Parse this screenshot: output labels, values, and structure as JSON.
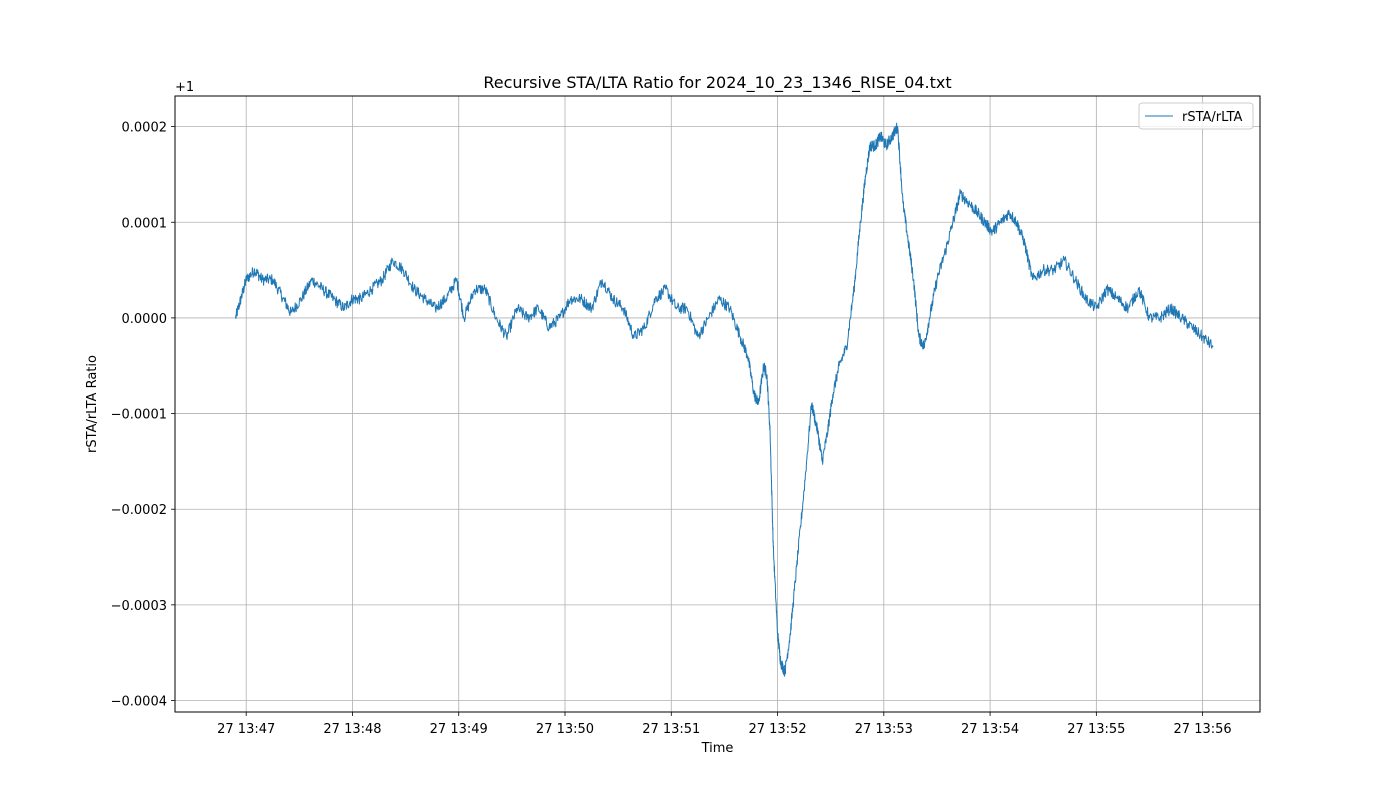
{
  "chart_data": {
    "type": "line",
    "title": "Recursive STA/LTA Ratio for 2024_10_23_1346_RISE_04.txt",
    "xlabel": "Time",
    "ylabel": "rSTA/rLTA Ratio",
    "y_offset_label": "+1",
    "y_offset": 1,
    "x_tick_labels": [
      "27 13:47",
      "27 13:48",
      "27 13:49",
      "27 13:50",
      "27 13:51",
      "27 13:52",
      "27 13:53",
      "27 13:54",
      "27 13:55",
      "27 13:56"
    ],
    "x_ticks_min": [
      47,
      48,
      49,
      50,
      51,
      52,
      53,
      54,
      55,
      56
    ],
    "xlim": [
      46.33,
      56.54
    ],
    "x_unit": "minutes past 13:00 on day 27",
    "y_tick_labels": [
      "0.0002",
      "0.0001",
      "0.0000",
      "−0.0001",
      "−0.0002",
      "−0.0003",
      "−0.0004"
    ],
    "y_ticks": [
      0.0002,
      0.0001,
      0.0,
      -0.0001,
      -0.0002,
      -0.0003,
      -0.0004
    ],
    "ylim": [
      -0.000412,
      0.000232
    ],
    "grid": true,
    "legend": {
      "position": "top-right",
      "entries": [
        "rSTA/rLTA"
      ]
    },
    "series": [
      {
        "name": "rSTA/rLTA",
        "color": "#1f77b4",
        "x": [
          46.9,
          46.95,
          47.0,
          47.08,
          47.15,
          47.25,
          47.35,
          47.42,
          47.52,
          47.62,
          47.72,
          47.82,
          47.92,
          48.0,
          48.08,
          48.18,
          48.28,
          48.38,
          48.48,
          48.58,
          48.68,
          48.78,
          48.88,
          48.98,
          49.05,
          49.15,
          49.25,
          49.35,
          49.45,
          49.55,
          49.65,
          49.75,
          49.85,
          49.95,
          50.05,
          50.15,
          50.25,
          50.35,
          50.45,
          50.55,
          50.65,
          50.75,
          50.85,
          50.95,
          51.05,
          51.15,
          51.25,
          51.35,
          51.45,
          51.55,
          51.65,
          51.72,
          51.78,
          51.82,
          51.87,
          51.9,
          51.93,
          51.96,
          52.0,
          52.03,
          52.07,
          52.12,
          52.18,
          52.25,
          52.32,
          52.38,
          52.42,
          52.47,
          52.52,
          52.58,
          52.65,
          52.72,
          52.78,
          52.83,
          52.87,
          52.92,
          52.97,
          53.02,
          53.08,
          53.13,
          53.18,
          53.23,
          53.28,
          53.33,
          53.38,
          53.43,
          53.5,
          53.58,
          53.65,
          53.72,
          53.8,
          53.88,
          53.95,
          54.02,
          54.1,
          54.18,
          54.25,
          54.32,
          54.4,
          54.5,
          54.6,
          54.7,
          54.8,
          54.9,
          55.0,
          55.1,
          55.2,
          55.3,
          55.4,
          55.5,
          55.6,
          55.7,
          55.8,
          55.9,
          56.0,
          56.1
        ],
        "y": [
          0.0,
          2e-05,
          4e-05,
          5e-05,
          4e-05,
          4e-05,
          2e-05,
          5e-06,
          2e-05,
          4e-05,
          3e-05,
          2e-05,
          1e-05,
          2e-05,
          2e-05,
          3e-05,
          4e-05,
          6e-05,
          5e-05,
          3e-05,
          2e-05,
          1e-05,
          2e-05,
          4e-05,
          0.0,
          3e-05,
          3e-05,
          0.0,
          -2e-05,
          1e-05,
          0.0,
          1e-05,
          -1e-05,
          0.0,
          2e-05,
          2e-05,
          1e-05,
          4e-05,
          2e-05,
          1e-05,
          -2e-05,
          -1e-05,
          2e-05,
          3e-05,
          1e-05,
          1e-05,
          -2e-05,
          0.0,
          2e-05,
          1e-05,
          -2e-05,
          -4e-05,
          -8e-05,
          -9e-05,
          -5e-05,
          -6e-05,
          -0.00012,
          -0.00024,
          -0.00033,
          -0.00036,
          -0.00037,
          -0.00033,
          -0.00026,
          -0.00018,
          -9e-05,
          -0.00012,
          -0.00015,
          -0.00012,
          -8e-05,
          -5e-05,
          -3e-05,
          3e-05,
          0.0001,
          0.00015,
          0.00018,
          0.00018,
          0.00019,
          0.00018,
          0.00019,
          0.0002,
          0.00012,
          8e-05,
          4e-05,
          -2e-05,
          -3e-05,
          0.0,
          4e-05,
          7e-05,
          0.0001,
          0.00013,
          0.00012,
          0.00011,
          0.0001,
          9e-05,
          0.0001,
          0.00011,
          0.0001,
          8e-05,
          4e-05,
          5e-05,
          5e-05,
          6e-05,
          4e-05,
          2e-05,
          1e-05,
          3e-05,
          2e-05,
          1e-05,
          3e-05,
          0.0,
          0.0,
          1e-05,
          0.0,
          -1e-05,
          -2e-05,
          -3e-05
        ]
      }
    ]
  }
}
